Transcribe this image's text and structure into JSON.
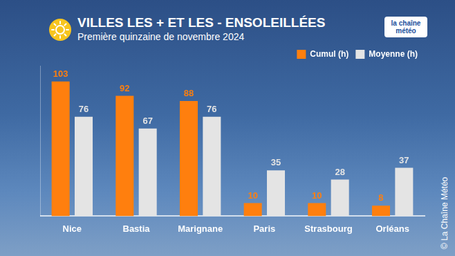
{
  "chart_data": {
    "type": "bar",
    "title": "VILLES LES + ET LES - ENSOLEILLÉES",
    "subtitle": "Première quinzaine de novembre 2024",
    "annotations": [
      "la chaîne météo",
      "© La Chaîne Météo"
    ],
    "categories": [
      "Nice",
      "Bastia",
      "Marignane",
      "Paris",
      "Strasbourg",
      "Orléans"
    ],
    "series": [
      {
        "name": "Cumul (h)",
        "color": "#ff7f0e",
        "values": [
          103,
          92,
          88,
          10,
          10,
          8
        ]
      },
      {
        "name": "Moyenne (h)",
        "color": "#e4e4e4",
        "values": [
          76,
          67,
          76,
          35,
          28,
          37
        ]
      }
    ],
    "ylim": [
      0,
      115
    ],
    "grid": false,
    "legend": "top-right",
    "data_labels": true,
    "tick_labels": "x"
  }
}
